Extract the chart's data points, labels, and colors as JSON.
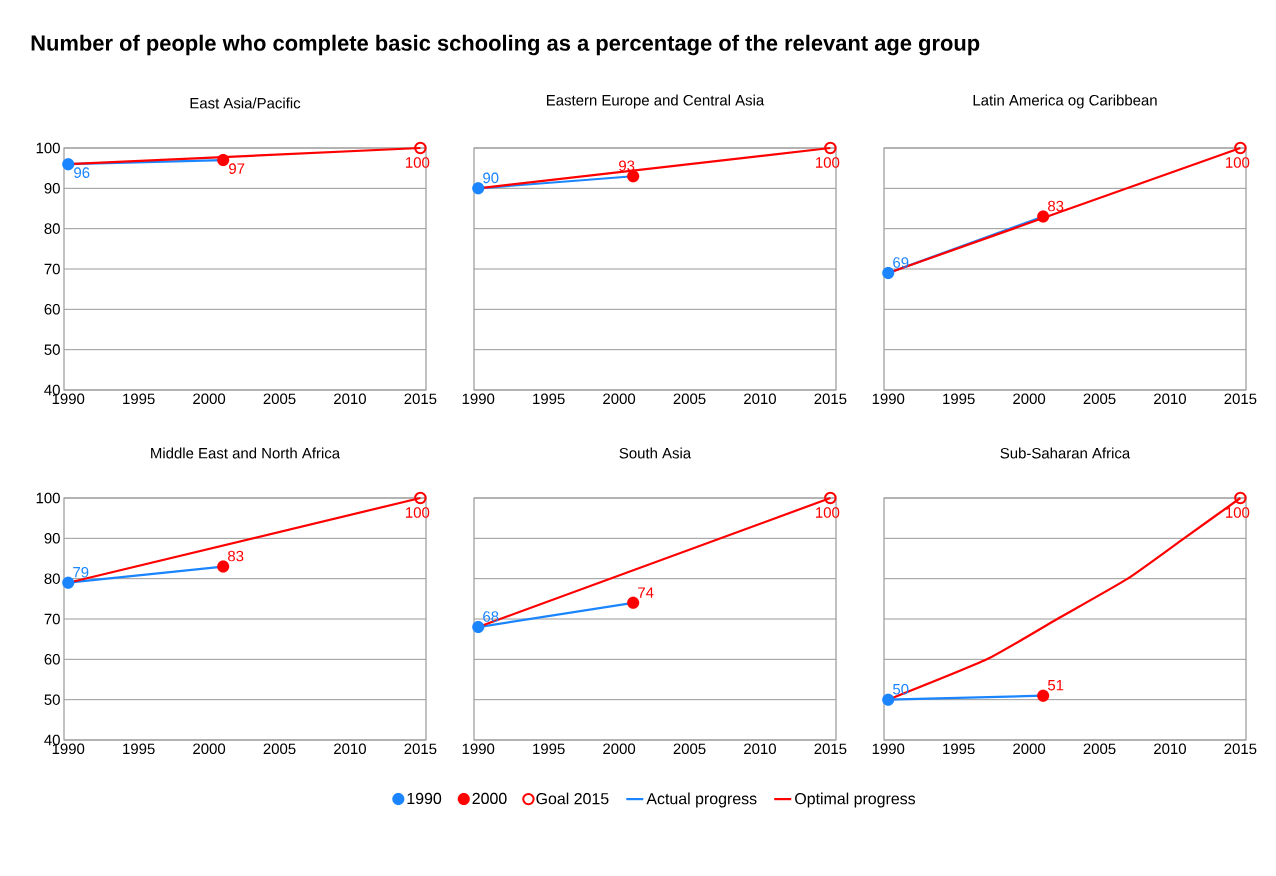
{
  "chart_data": [
    {
      "type": "other",
      "title": "Number of people who complete basic schooling as a percentage of the relevant age group"
    },
    {
      "type": "line",
      "title": "East Asia/Pacific",
      "xlim": [
        1989.7,
        2015.4
      ],
      "ylim": [
        40,
        100
      ],
      "xticks": [
        1990,
        1995,
        2000,
        2005,
        2010,
        2015
      ],
      "yticks": [
        40,
        50,
        60,
        70,
        80,
        90,
        100
      ],
      "grid": "y",
      "legend": false,
      "series": [
        {
          "color": "#1a85ff",
          "x": [
            1990,
            2001
          ],
          "values": [
            96,
            97
          ]
        },
        {
          "color": "#ff0000",
          "x": [
            1990,
            2015
          ],
          "values": [
            96,
            100
          ]
        },
        {
          "type": "scatter",
          "marker": "circle",
          "color": "#1a85ff",
          "x": [
            1990
          ],
          "values": [
            96
          ],
          "value_labels": [
            "96"
          ]
        },
        {
          "type": "scatter",
          "marker": "circle",
          "color": "#ff0000",
          "x": [
            2001
          ],
          "values": [
            97
          ],
          "value_labels": [
            "97"
          ]
        },
        {
          "type": "scatter",
          "marker": "circle-open",
          "color": "#ff0000",
          "x": [
            2015
          ],
          "values": [
            100
          ],
          "value_labels": [
            "100"
          ]
        }
      ]
    },
    {
      "type": "line",
      "title": "Eastern Europe and Central Asia",
      "xlim": [
        1989.7,
        2015.4
      ],
      "ylim": [
        40,
        100
      ],
      "xticks": [
        1990,
        1995,
        2000,
        2005,
        2010,
        2015
      ],
      "yticks": [
        40,
        50,
        60,
        70,
        80,
        90,
        100
      ],
      "grid": "y",
      "legend": false,
      "tick_labels": "x",
      "series": [
        {
          "color": "#1a85ff",
          "x": [
            1990,
            2001
          ],
          "values": [
            90,
            93
          ]
        },
        {
          "color": "#ff0000",
          "x": [
            1990,
            2015
          ],
          "values": [
            90,
            100
          ]
        },
        {
          "type": "scatter",
          "marker": "circle",
          "color": "#1a85ff",
          "x": [
            1990
          ],
          "values": [
            90
          ],
          "value_labels": [
            "90"
          ]
        },
        {
          "type": "scatter",
          "marker": "circle",
          "color": "#ff0000",
          "x": [
            2001
          ],
          "values": [
            93
          ],
          "value_labels": [
            "93"
          ]
        },
        {
          "type": "scatter",
          "marker": "circle-open",
          "color": "#ff0000",
          "x": [
            2015
          ],
          "values": [
            100
          ],
          "value_labels": [
            "100"
          ]
        }
      ]
    },
    {
      "type": "line",
      "title": "Latin America og Caribbean",
      "xlim": [
        1989.7,
        2015.4
      ],
      "ylim": [
        40,
        100
      ],
      "xticks": [
        1990,
        1995,
        2000,
        2005,
        2010,
        2015
      ],
      "yticks": [
        40,
        50,
        60,
        70,
        80,
        90,
        100
      ],
      "grid": "y",
      "legend": false,
      "tick_labels": "x",
      "series": [
        {
          "color": "#1a85ff",
          "x": [
            1990,
            2001
          ],
          "values": [
            69,
            83
          ]
        },
        {
          "color": "#ff0000",
          "x": [
            1990,
            2015
          ],
          "values": [
            69,
            100
          ]
        },
        {
          "type": "scatter",
          "marker": "circle",
          "color": "#1a85ff",
          "x": [
            1990
          ],
          "values": [
            69
          ],
          "value_labels": [
            "69"
          ]
        },
        {
          "type": "scatter",
          "marker": "circle",
          "color": "#ff0000",
          "x": [
            2001
          ],
          "values": [
            83
          ],
          "value_labels": [
            "83"
          ]
        },
        {
          "type": "scatter",
          "marker": "circle-open",
          "color": "#ff0000",
          "x": [
            2015
          ],
          "values": [
            100
          ],
          "value_labels": [
            "100"
          ]
        }
      ]
    },
    {
      "type": "line",
      "title": "Middle East and North Africa",
      "xlim": [
        1989.7,
        2015.4
      ],
      "ylim": [
        40,
        100
      ],
      "xticks": [
        1990,
        1995,
        2000,
        2005,
        2010,
        2015
      ],
      "yticks": [
        40,
        50,
        60,
        70,
        80,
        90,
        100
      ],
      "grid": "y",
      "legend": false,
      "series": [
        {
          "color": "#1a85ff",
          "x": [
            1990,
            2001
          ],
          "values": [
            79,
            83
          ]
        },
        {
          "color": "#ff0000",
          "x": [
            1990,
            2015
          ],
          "values": [
            79,
            100
          ]
        },
        {
          "type": "scatter",
          "marker": "circle",
          "color": "#1a85ff",
          "x": [
            1990
          ],
          "values": [
            79
          ],
          "value_labels": [
            "79"
          ]
        },
        {
          "type": "scatter",
          "marker": "circle",
          "color": "#ff0000",
          "x": [
            2001
          ],
          "values": [
            83
          ],
          "value_labels": [
            "83"
          ]
        },
        {
          "type": "scatter",
          "marker": "circle-open",
          "color": "#ff0000",
          "x": [
            2015
          ],
          "values": [
            100
          ],
          "value_labels": [
            "100"
          ]
        }
      ]
    },
    {
      "type": "line",
      "title": "South Asia",
      "xlim": [
        1989.7,
        2015.4
      ],
      "ylim": [
        40,
        100
      ],
      "xticks": [
        1990,
        1995,
        2000,
        2005,
        2010,
        2015
      ],
      "yticks": [
        40,
        50,
        60,
        70,
        80,
        90,
        100
      ],
      "grid": "y",
      "legend": "bottom",
      "tick_labels": "x",
      "series": [
        {
          "name": "Actual progress",
          "color": "#1a85ff",
          "x": [
            1990,
            2001
          ],
          "values": [
            68,
            74
          ]
        },
        {
          "name": "Optimal progress",
          "color": "#ff0000",
          "x": [
            1990,
            2015
          ],
          "values": [
            68,
            100
          ]
        },
        {
          "name": "1990",
          "type": "scatter",
          "marker": "circle",
          "color": "#1a85ff",
          "x": [
            1990
          ],
          "values": [
            68
          ],
          "value_labels": [
            "68"
          ]
        },
        {
          "name": "2000",
          "type": "scatter",
          "marker": "circle",
          "color": "#ff0000",
          "x": [
            2001
          ],
          "values": [
            74
          ],
          "value_labels": [
            "74"
          ]
        },
        {
          "name": "Goal 2015",
          "type": "scatter",
          "marker": "circle-open",
          "color": "#ff0000",
          "x": [
            2015
          ],
          "values": [
            100
          ],
          "value_labels": [
            "100"
          ]
        }
      ]
    },
    {
      "type": "line",
      "title": "Sub-Saharan Africa",
      "xlim": [
        1989.7,
        2015.4
      ],
      "ylim": [
        40,
        100
      ],
      "xticks": [
        1990,
        1995,
        2000,
        2005,
        2010,
        2015
      ],
      "yticks": [
        40,
        50,
        60,
        70,
        80,
        90,
        100
      ],
      "grid": "y",
      "legend": false,
      "tick_labels": "x",
      "series": [
        {
          "color": "#1a85ff",
          "x": [
            1990,
            2001
          ],
          "values": [
            50,
            51
          ]
        },
        {
          "color": "#ff0000",
          "x": [
            1990,
            1997,
            2002,
            2007,
            2011,
            2015
          ],
          "values": [
            50,
            60,
            70,
            80,
            90,
            100
          ]
        },
        {
          "type": "scatter",
          "marker": "circle",
          "color": "#1a85ff",
          "x": [
            1990
          ],
          "values": [
            50
          ],
          "value_labels": [
            "50"
          ]
        },
        {
          "type": "scatter",
          "marker": "circle",
          "color": "#ff0000",
          "x": [
            2001
          ],
          "values": [
            51
          ],
          "value_labels": [
            "51"
          ]
        },
        {
          "type": "scatter",
          "marker": "circle-open",
          "color": "#ff0000",
          "x": [
            2015
          ],
          "values": [
            100
          ],
          "value_labels": [
            "100"
          ]
        }
      ]
    }
  ]
}
